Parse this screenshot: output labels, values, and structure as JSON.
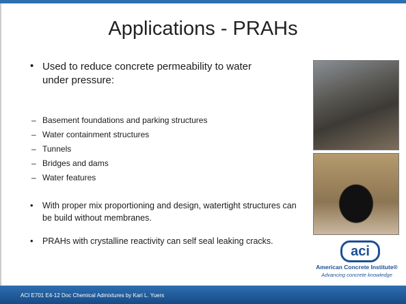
{
  "slide": {
    "title": "Applications - PRAHs",
    "bullets": [
      {
        "text": "Used to reduce concrete permeability to water under pressure:",
        "sub": [
          "Basement foundations and parking structures",
          "Water containment structures",
          "Tunnels",
          "Bridges and dams",
          "Water features"
        ]
      },
      {
        "text": "With proper mix proportioning and design, watertight structures can be build without membranes."
      },
      {
        "text": "PRAHs with crystalline reactivity can self seal leaking cracks."
      }
    ],
    "logo": {
      "mark": "aci",
      "name": "American Concrete Institute®",
      "tagline": "Advancing concrete knowledge"
    },
    "footer": "ACI E701 E4-12 Doc  Chemical Admixtures by Kari L. Yuers"
  }
}
